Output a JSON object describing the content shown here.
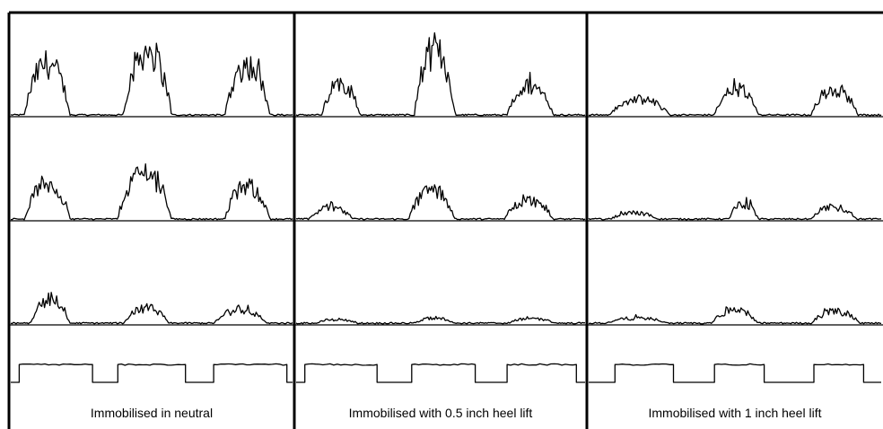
{
  "figure": {
    "columns": [
      {
        "label": "Immobilised in neutral"
      },
      {
        "label": "Immobilised with 0.5 inch heel lift"
      },
      {
        "label": "Immobilised with 1 inch heel lift"
      }
    ],
    "line_color": "#000000",
    "background": "#ffffff"
  },
  "chart_data": {
    "type": "line",
    "title": "",
    "grid": "3 columns x 4 rows of signal traces",
    "columns": [
      "Immobilised in neutral",
      "Immobilised with 0.5 inch heel lift",
      "Immobilised with 1 inch heel lift"
    ],
    "rows": 4,
    "bursts_per_trace": 3,
    "traces": [
      {
        "column": 0,
        "row": 0,
        "kind": "emg",
        "burst_peaks": [
          0.78,
          0.98,
          0.75
        ],
        "burst_spans": [
          [
            0.05,
            0.21
          ],
          [
            0.4,
            0.57
          ],
          [
            0.76,
            0.92
          ]
        ]
      },
      {
        "column": 1,
        "row": 0,
        "kind": "emg",
        "burst_peaks": [
          0.5,
          0.98,
          0.45
        ],
        "burst_spans": [
          [
            0.09,
            0.22
          ],
          [
            0.41,
            0.55
          ],
          [
            0.73,
            0.89
          ]
        ]
      },
      {
        "column": 2,
        "row": 0,
        "kind": "emg",
        "burst_peaks": [
          0.25,
          0.4,
          0.41
        ],
        "burst_spans": [
          [
            0.07,
            0.28
          ],
          [
            0.43,
            0.58
          ],
          [
            0.76,
            0.92
          ]
        ]
      },
      {
        "column": 0,
        "row": 1,
        "kind": "emg",
        "burst_peaks": [
          0.55,
          0.72,
          0.5
        ],
        "burst_spans": [
          [
            0.05,
            0.21
          ],
          [
            0.38,
            0.57
          ],
          [
            0.76,
            0.92
          ]
        ]
      },
      {
        "column": 1,
        "row": 1,
        "kind": "emg",
        "burst_peaks": [
          0.2,
          0.45,
          0.3
        ],
        "burst_spans": [
          [
            0.04,
            0.2
          ],
          [
            0.39,
            0.55
          ],
          [
            0.72,
            0.89
          ]
        ]
      },
      {
        "column": 2,
        "row": 1,
        "kind": "emg",
        "burst_peaks": [
          0.12,
          0.25,
          0.2
        ],
        "burst_spans": [
          [
            0.07,
            0.24
          ],
          [
            0.48,
            0.58
          ],
          [
            0.76,
            0.92
          ]
        ]
      },
      {
        "column": 0,
        "row": 2,
        "kind": "emg",
        "burst_peaks": [
          0.38,
          0.25,
          0.22
        ],
        "burst_spans": [
          [
            0.07,
            0.21
          ],
          [
            0.4,
            0.56
          ],
          [
            0.72,
            0.91
          ]
        ]
      },
      {
        "column": 1,
        "row": 2,
        "kind": "emg",
        "burst_peaks": [
          0.08,
          0.1,
          0.1
        ],
        "burst_spans": [
          [
            0.06,
            0.22
          ],
          [
            0.4,
            0.56
          ],
          [
            0.73,
            0.9
          ]
        ]
      },
      {
        "column": 2,
        "row": 2,
        "kind": "emg",
        "burst_peaks": [
          0.1,
          0.22,
          0.2
        ],
        "burst_spans": [
          [
            0.05,
            0.28
          ],
          [
            0.42,
            0.58
          ],
          [
            0.76,
            0.93
          ]
        ]
      },
      {
        "column": 0,
        "row": 3,
        "kind": "footswitch",
        "on_spans": [
          [
            0.03,
            0.29
          ],
          [
            0.38,
            0.62
          ],
          [
            0.72,
            0.98
          ]
        ],
        "high": 0.55,
        "low": 0.0
      },
      {
        "column": 1,
        "row": 3,
        "kind": "footswitch",
        "on_spans": [
          [
            0.03,
            0.28
          ],
          [
            0.4,
            0.62
          ],
          [
            0.73,
            0.97
          ]
        ],
        "high": 0.55,
        "low": 0.0
      },
      {
        "column": 2,
        "row": 3,
        "kind": "footswitch",
        "on_spans": [
          [
            0.09,
            0.29
          ],
          [
            0.43,
            0.6
          ],
          [
            0.77,
            0.94
          ]
        ],
        "high": 0.55,
        "low": 0.0
      }
    ]
  }
}
